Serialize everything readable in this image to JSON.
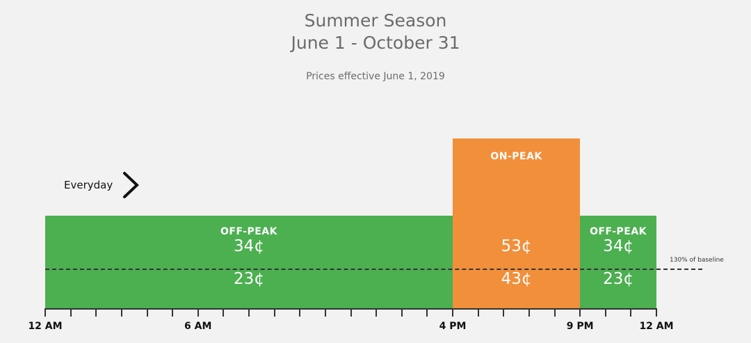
{
  "chart_data": {
    "type": "bar",
    "title": "Summer Season",
    "subtitle": "June 1 - October 31",
    "note": "Prices effective June 1, 2019",
    "day_label": "Everyday",
    "x_range_hours": [
      0,
      24
    ],
    "periods": [
      {
        "label": "OFF-PEAK",
        "start": 0,
        "end": 16,
        "price_high": "34¢",
        "price_low": "23¢",
        "color": "#4caf50",
        "level": "low"
      },
      {
        "label": "ON-PEAK",
        "start": 16,
        "end": 21,
        "price_high": "53¢",
        "price_low": "43¢",
        "color": "#f28f3b",
        "level": "high"
      },
      {
        "label": "OFF-PEAK",
        "start": 21,
        "end": 24,
        "price_high": "34¢",
        "price_low": "23¢",
        "color": "#4caf50",
        "level": "low"
      }
    ],
    "baseline_label": "130% of baseline",
    "tick_labels": [
      {
        "hour": 0,
        "label": "12 AM"
      },
      {
        "hour": 6,
        "label": "6 AM"
      },
      {
        "hour": 16,
        "label": "4 PM"
      },
      {
        "hour": 21,
        "label": "9 PM"
      },
      {
        "hour": 24,
        "label": "12 AM"
      }
    ]
  }
}
